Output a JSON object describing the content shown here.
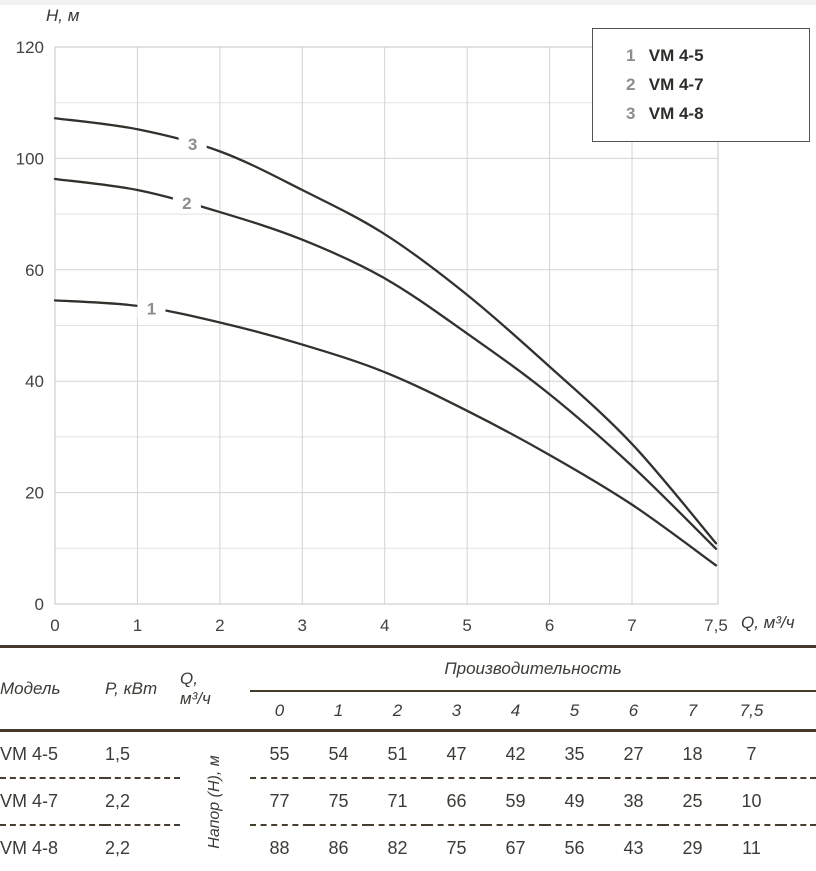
{
  "page": {
    "type": "pump-performance-curves-and-table"
  },
  "chart_data": {
    "type": "line",
    "title": "",
    "xlabel": "Q, м³/ч",
    "ylabel": "H, м",
    "x": [
      0,
      1,
      2,
      3,
      4,
      5,
      6,
      7,
      7.5
    ],
    "x_tick_labels": [
      "0",
      "1",
      "2",
      "3",
      "4",
      "5",
      "6",
      "7",
      "7,5"
    ],
    "y_tick_labels": [
      "120",
      "100",
      "60",
      "40",
      "20",
      "0"
    ],
    "ylim_shown": [
      0,
      120
    ],
    "grid": true,
    "legend_position": "top-right",
    "series": [
      {
        "curve_number": "1",
        "name": "VM 4-5",
        "values": [
          55,
          54,
          51,
          47,
          42,
          35,
          27,
          18,
          7
        ]
      },
      {
        "curve_number": "2",
        "name": "VM 4-7",
        "values": [
          77,
          75,
          71,
          66,
          59,
          49,
          38,
          25,
          10
        ]
      },
      {
        "curve_number": "3",
        "name": "VM 4-8",
        "values": [
          88,
          86,
          82,
          75,
          67,
          56,
          43,
          29,
          11
        ]
      }
    ],
    "legend": [
      {
        "number": "1",
        "label": "VM 4-5"
      },
      {
        "number": "2",
        "label": "VM 4-7"
      },
      {
        "number": "3",
        "label": "VM 4-8"
      }
    ]
  },
  "table": {
    "headers": {
      "model": "Модель",
      "power": "P, кВт",
      "flow_line1": "Q,",
      "flow_line2": "м³/ч",
      "span": "Производительность"
    },
    "head_axis_label": "Напор (Н), м",
    "flow_values": [
      "0",
      "1",
      "2",
      "3",
      "4",
      "5",
      "6",
      "7",
      "7,5"
    ],
    "rows": [
      {
        "model": "VM 4-5",
        "power": "1,5",
        "heads": [
          "55",
          "54",
          "51",
          "47",
          "42",
          "35",
          "27",
          "18",
          "7"
        ]
      },
      {
        "model": "VM 4-7",
        "power": "2,2",
        "heads": [
          "77",
          "75",
          "71",
          "66",
          "59",
          "49",
          "38",
          "25",
          "10"
        ]
      },
      {
        "model": "VM 4-8",
        "power": "2,2",
        "heads": [
          "88",
          "86",
          "82",
          "75",
          "67",
          "56",
          "43",
          "29",
          "11"
        ]
      }
    ]
  }
}
